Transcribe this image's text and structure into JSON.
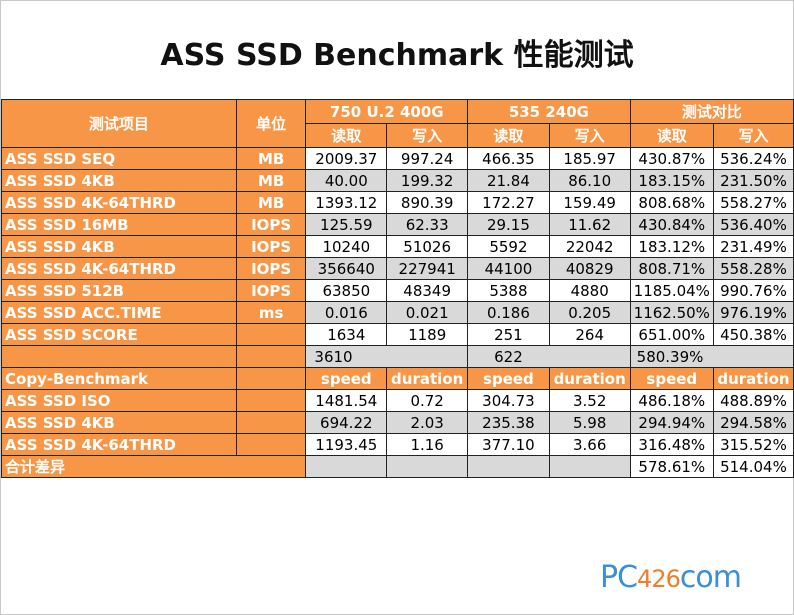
{
  "title": "ASS SSD Benchmark 性能测试",
  "header": {
    "item": "测试项目",
    "unit": "单位",
    "group1": "750 U.2 400G",
    "group2": "535 240G",
    "group3": "测试对比",
    "read": "读取",
    "write": "写入"
  },
  "rows": [
    {
      "label": "ASS SSD SEQ",
      "unit": "MB",
      "v": [
        "2009.37",
        "997.24",
        "466.35",
        "185.97",
        "430.87%",
        "536.24%"
      ]
    },
    {
      "label": "ASS SSD 4KB",
      "unit": "MB",
      "v": [
        "40.00",
        "199.32",
        "21.84",
        "86.10",
        "183.15%",
        "231.50%"
      ]
    },
    {
      "label": "ASS SSD 4K-64THRD",
      "unit": "MB",
      "v": [
        "1393.12",
        "890.39",
        "172.27",
        "159.49",
        "808.68%",
        "558.27%"
      ]
    },
    {
      "label": "ASS SSD 16MB",
      "unit": "IOPS",
      "v": [
        "125.59",
        "62.33",
        "29.15",
        "11.62",
        "430.84%",
        "536.40%"
      ]
    },
    {
      "label": "ASS SSD 4KB",
      "unit": "IOPS",
      "v": [
        "10240",
        "51026",
        "5592",
        "22042",
        "183.12%",
        "231.49%"
      ]
    },
    {
      "label": "ASS SSD 4K-64THRD",
      "unit": "IOPS",
      "v": [
        "356640",
        "227941",
        "44100",
        "40829",
        "808.71%",
        "558.28%"
      ]
    },
    {
      "label": "ASS SSD 512B",
      "unit": "IOPS",
      "v": [
        "63850",
        "48349",
        "5388",
        "4880",
        "1185.04%",
        "990.76%"
      ]
    },
    {
      "label": "ASS SSD ACC.TIME",
      "unit": "ms",
      "v": [
        "0.016",
        "0.021",
        "0.186",
        "0.205",
        "1162.50%",
        "976.19%"
      ]
    },
    {
      "label": "ASS SSD SCORE",
      "unit": "",
      "v": [
        "1634",
        "1189",
        "251",
        "264",
        "651.00%",
        "450.38%"
      ]
    }
  ],
  "totals": {
    "a": "3610",
    "b": "622",
    "c": "580.39%"
  },
  "copy_header": {
    "label": "Copy-Benchmark",
    "speed": "speed",
    "duration": "duration"
  },
  "copy_rows": [
    {
      "label": "ASS SSD ISO",
      "v": [
        "1481.54",
        "0.72",
        "304.73",
        "3.52",
        "486.18%",
        "488.89%"
      ]
    },
    {
      "label": "ASS SSD 4KB",
      "v": [
        "694.22",
        "2.03",
        "235.38",
        "5.98",
        "294.94%",
        "294.58%"
      ]
    },
    {
      "label": "ASS SSD 4K-64THRD",
      "v": [
        "1193.45",
        "1.16",
        "377.10",
        "3.66",
        "316.48%",
        "315.52%"
      ]
    }
  ],
  "footer": {
    "label": "合计差异",
    "v1": "578.61%",
    "v2": "514.04%"
  },
  "logo": {
    "prefix": "PC",
    "num": "426",
    "suffix": "com"
  },
  "colors": {
    "orange": "#f79646",
    "gray": "#d9d9d9",
    "logo_blue": "#3a8fd6",
    "logo_orange": "#f07d28"
  }
}
